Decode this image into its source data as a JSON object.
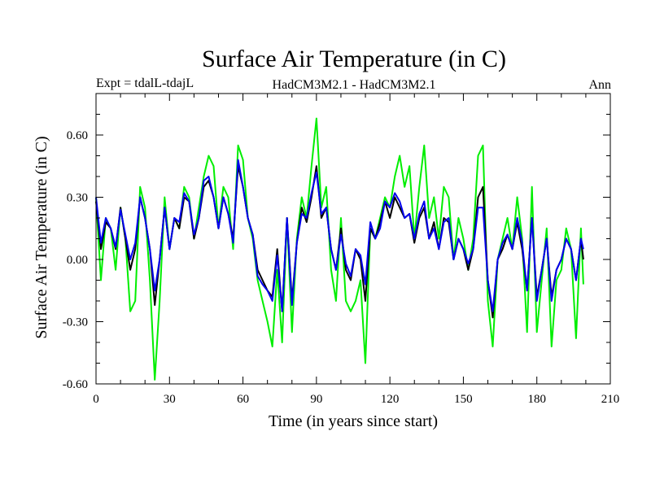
{
  "chart_data": {
    "type": "line",
    "title": "Surface Air Temperature (in C)",
    "subtitle_left": "Expt = tdalL-tdajL",
    "subtitle_center": "HadCM3M2.1 - HadCM3M2.1",
    "subtitle_right": "Ann",
    "xlabel": "Time (in years since start)",
    "ylabel": "Surface Air Temperature (in C)",
    "xlim": [
      0,
      210
    ],
    "ylim": [
      -0.6,
      0.8
    ],
    "xticks": [
      0,
      30,
      60,
      90,
      120,
      150,
      180,
      210
    ],
    "xtick_labels": [
      "0",
      "30",
      "60",
      "90",
      "120",
      "150",
      "180",
      "210"
    ],
    "yticks": [
      -0.6,
      -0.3,
      0.0,
      0.3,
      0.6
    ],
    "ytick_labels": [
      "-0.60",
      "-0.30",
      "0.00",
      "0.30",
      "0.60"
    ],
    "series": [
      {
        "name": "green",
        "color": "#00ee00",
        "x": [
          0,
          2,
          4,
          6,
          8,
          10,
          12,
          14,
          16,
          18,
          20,
          22,
          24,
          26,
          28,
          30,
          32,
          34,
          36,
          38,
          40,
          42,
          44,
          46,
          48,
          50,
          52,
          54,
          56,
          58,
          60,
          62,
          64,
          66,
          68,
          70,
          72,
          74,
          76,
          78,
          80,
          82,
          84,
          86,
          88,
          90,
          92,
          94,
          96,
          98,
          100,
          102,
          104,
          106,
          108,
          110,
          112,
          114,
          116,
          118,
          120,
          122,
          124,
          126,
          128,
          130,
          132,
          134,
          136,
          138,
          140,
          142,
          144,
          146,
          148,
          150,
          152,
          154,
          156,
          158,
          160,
          162,
          164,
          166,
          168,
          170,
          172,
          174,
          176,
          178,
          180,
          182,
          184,
          186,
          188,
          190,
          192,
          194,
          196,
          198,
          199
        ],
        "values": [
          0.3,
          -0.1,
          0.2,
          0.15,
          -0.05,
          0.25,
          0.1,
          -0.25,
          -0.2,
          0.35,
          0.25,
          -0.1,
          -0.58,
          -0.2,
          0.3,
          0.05,
          0.2,
          0.15,
          0.35,
          0.3,
          0.1,
          0.25,
          0.4,
          0.5,
          0.45,
          0.15,
          0.35,
          0.3,
          0.05,
          0.55,
          0.48,
          0.2,
          0.1,
          -0.1,
          -0.2,
          -0.3,
          -0.42,
          -0.05,
          -0.4,
          0.2,
          -0.35,
          0.1,
          0.3,
          0.2,
          0.45,
          0.68,
          0.25,
          0.35,
          -0.05,
          -0.2,
          0.2,
          -0.2,
          -0.25,
          -0.2,
          -0.1,
          -0.5,
          0.15,
          0.1,
          0.2,
          0.3,
          0.25,
          0.4,
          0.5,
          0.35,
          0.45,
          0.1,
          0.35,
          0.55,
          0.2,
          0.3,
          0.1,
          0.35,
          0.3,
          0.0,
          0.2,
          0.1,
          -0.05,
          0.1,
          0.5,
          0.55,
          -0.2,
          -0.42,
          0.0,
          0.1,
          0.2,
          0.05,
          0.3,
          0.1,
          -0.35,
          0.35,
          -0.35,
          -0.1,
          0.15,
          -0.42,
          -0.1,
          -0.05,
          0.15,
          0.05,
          -0.38,
          0.15,
          -0.12
        ]
      },
      {
        "name": "black",
        "color": "#000000",
        "x": [
          0,
          2,
          4,
          6,
          8,
          10,
          12,
          14,
          16,
          18,
          20,
          22,
          24,
          26,
          28,
          30,
          32,
          34,
          36,
          38,
          40,
          42,
          44,
          46,
          48,
          50,
          52,
          54,
          56,
          58,
          60,
          62,
          64,
          66,
          68,
          70,
          72,
          74,
          76,
          78,
          80,
          82,
          84,
          86,
          88,
          90,
          92,
          94,
          96,
          98,
          100,
          102,
          104,
          106,
          108,
          110,
          112,
          114,
          116,
          118,
          120,
          122,
          124,
          126,
          128,
          130,
          132,
          134,
          136,
          138,
          140,
          142,
          144,
          146,
          148,
          150,
          152,
          154,
          156,
          158,
          160,
          162,
          164,
          166,
          168,
          170,
          172,
          174,
          176,
          178,
          180,
          182,
          184,
          186,
          188,
          190,
          192,
          194,
          196,
          198,
          199
        ],
        "values": [
          0.28,
          0.05,
          0.18,
          0.15,
          0.05,
          0.25,
          0.1,
          -0.05,
          0.05,
          0.3,
          0.2,
          0.05,
          -0.22,
          0.0,
          0.25,
          0.05,
          0.2,
          0.15,
          0.3,
          0.28,
          0.1,
          0.2,
          0.35,
          0.38,
          0.3,
          0.15,
          0.3,
          0.22,
          0.1,
          0.45,
          0.35,
          0.2,
          0.12,
          -0.05,
          -0.1,
          -0.15,
          -0.18,
          0.05,
          -0.25,
          0.2,
          -0.2,
          0.08,
          0.25,
          0.18,
          0.3,
          0.45,
          0.2,
          0.25,
          0.05,
          -0.05,
          0.15,
          -0.05,
          -0.1,
          0.05,
          0.0,
          -0.2,
          0.15,
          0.1,
          0.18,
          0.28,
          0.2,
          0.3,
          0.25,
          0.2,
          0.22,
          0.08,
          0.2,
          0.25,
          0.1,
          0.18,
          0.05,
          0.2,
          0.18,
          0.0,
          0.1,
          0.05,
          -0.05,
          0.05,
          0.3,
          0.35,
          -0.1,
          -0.28,
          0.0,
          0.05,
          0.12,
          0.05,
          0.18,
          0.05,
          -0.15,
          0.2,
          -0.18,
          -0.05,
          0.1,
          -0.18,
          -0.05,
          0.0,
          0.1,
          0.05,
          -0.1,
          0.1,
          0.0
        ]
      },
      {
        "name": "blue",
        "color": "#0000ee",
        "x": [
          0,
          2,
          4,
          6,
          8,
          10,
          12,
          14,
          16,
          18,
          20,
          22,
          24,
          26,
          28,
          30,
          32,
          34,
          36,
          38,
          40,
          42,
          44,
          46,
          48,
          50,
          52,
          54,
          56,
          58,
          60,
          62,
          64,
          66,
          68,
          70,
          72,
          74,
          76,
          78,
          80,
          82,
          84,
          86,
          88,
          90,
          92,
          94,
          96,
          98,
          100,
          102,
          104,
          106,
          108,
          110,
          112,
          114,
          116,
          118,
          120,
          122,
          124,
          126,
          128,
          130,
          132,
          134,
          136,
          138,
          140,
          142,
          144,
          146,
          148,
          150,
          152,
          154,
          156,
          158,
          160,
          162,
          164,
          166,
          168,
          170,
          172,
          174,
          176,
          178,
          180,
          182,
          184,
          186,
          188,
          190,
          192,
          194,
          196,
          198,
          199
        ],
        "values": [
          0.3,
          0.08,
          0.2,
          0.15,
          0.06,
          0.24,
          0.12,
          0.0,
          0.08,
          0.3,
          0.2,
          0.05,
          -0.15,
          0.0,
          0.25,
          0.05,
          0.2,
          0.18,
          0.32,
          0.28,
          0.12,
          0.2,
          0.38,
          0.4,
          0.3,
          0.15,
          0.3,
          0.22,
          0.08,
          0.48,
          0.35,
          0.2,
          0.12,
          -0.08,
          -0.12,
          -0.15,
          -0.2,
          0.02,
          -0.25,
          0.2,
          -0.22,
          0.08,
          0.22,
          0.2,
          0.32,
          0.42,
          0.22,
          0.25,
          0.05,
          -0.05,
          0.12,
          -0.02,
          -0.08,
          0.05,
          0.02,
          -0.12,
          0.18,
          0.1,
          0.15,
          0.28,
          0.25,
          0.32,
          0.28,
          0.2,
          0.22,
          0.1,
          0.22,
          0.28,
          0.1,
          0.15,
          0.05,
          0.18,
          0.2,
          0.0,
          0.1,
          0.05,
          -0.02,
          0.05,
          0.25,
          0.25,
          -0.1,
          -0.25,
          0.0,
          0.08,
          0.12,
          0.05,
          0.2,
          0.08,
          -0.15,
          0.2,
          -0.2,
          -0.05,
          0.1,
          -0.2,
          -0.05,
          0.0,
          0.1,
          0.05,
          -0.1,
          0.1,
          0.05
        ]
      }
    ]
  }
}
